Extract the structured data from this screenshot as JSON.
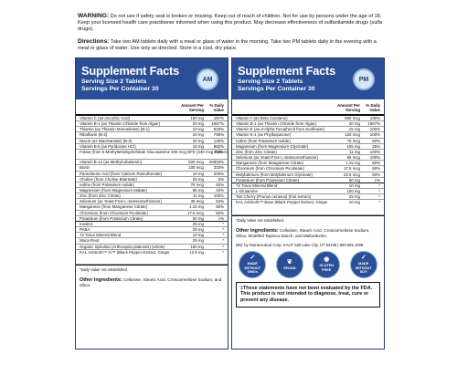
{
  "warning": {
    "label": "WARNING:",
    "text": "Do not use if safety seal is broken or missing. Keep out of reach of children. Not for use by persons under the age of 18. Keep your licensed health care practitioner informed when using this product. May decrease effectiveness of sulfanilamide drugs (sulfa drugs)."
  },
  "directions": {
    "label": "Directions:",
    "text": "Take two AM tablets daily with a meal or glass of water in the morning. Take two PM tablets daily in the evening with a meal or glass of water. Use only as directed. Store in a cool, dry place."
  },
  "am": {
    "title": "Supplement Facts",
    "serving": "Serving Size 2 Tablets",
    "per_container": "Servings Per Container 30",
    "badge": "AM",
    "col_amount": "Amount Per Serving",
    "col_dv": "% Daily Value",
    "rows": [
      {
        "n": "Vitamin C (as Ascorbic Acid)",
        "a": "150 mg",
        "d": "167%"
      },
      {
        "n": "Vitamin B-1 (as Thiamin Chloride from Algae)",
        "a": "20 mg",
        "d": "1667%"
      },
      {
        "n": "Thiamin (as Thiamin Mononitrate) (B-1)",
        "a": "10 mg",
        "d": "833%"
      },
      {
        "n": "Riboflavin (B-2)",
        "a": "10 mg",
        "d": "769%"
      },
      {
        "n": "Niacin (as Niacinamide) (B-3)",
        "a": "20 mg",
        "d": "125%"
      },
      {
        "n": "Vitamin B-6 (as Pyridoxine HCl)",
        "a": "15 mg",
        "d": "882%"
      },
      {
        "n": "Folate (from 5-Methyltetrahydrofolate Glucosamine Salt)",
        "a": "400 mcg DFE (240 mcg Folic Acid)",
        "d": "100%",
        "cls": "tall"
      },
      {
        "n": "Vitamin B-12 (as Methylcobalamin)",
        "a": "500 mcg",
        "d": "20833%"
      },
      {
        "n": "Biotin",
        "a": "100 mcg",
        "d": "333%"
      },
      {
        "n": "Pantothenic Acid (from Calcium Pantothenate)",
        "a": "10 mg",
        "d": "200%"
      },
      {
        "n": "Choline (from Choline Bitartrate)",
        "a": "25 mg",
        "d": "5%"
      },
      {
        "n": "Iodine (from Potassium Iodide)",
        "a": "75 mcg",
        "d": "50%"
      },
      {
        "n": "Magnesium (from Magnesium Malate)",
        "a": "85 mg",
        "d": "20%"
      },
      {
        "n": "Zinc (from Zinc Citrate)",
        "a": "11 mg",
        "d": "100%"
      },
      {
        "n": "Selenium (as Yeast-Free L-Selenomethionine)",
        "a": "35 mcg",
        "d": "64%"
      },
      {
        "n": "Manganese (from Manganese Citrate)",
        "a": "1.15 mg",
        "d": "50%"
      },
      {
        "n": "Chromium (from Chromium Picolinate)",
        "a": "17.5 mcg",
        "d": "50%"
      },
      {
        "n": "Potassium (from Potassium Citrate)",
        "a": "50 mg",
        "d": "1%",
        "cls": "thick"
      },
      {
        "n": "Inositol",
        "a": "25 mg",
        "d": "*"
      },
      {
        "n": "PABA",
        "a": "25 mg",
        "d": "*"
      },
      {
        "n": "72 Trace Mineral Blend",
        "a": "10 mg",
        "d": "*"
      },
      {
        "n": "Maca Root",
        "a": "25 mg",
        "d": "*"
      },
      {
        "n": "Organic Spirulina (Arthrospira platensis) (whole)",
        "a": "150 mg",
        "d": "*"
      },
      {
        "n": "KAL ActiSorb™ Ai™ (Black Pepper Extract, Ginger Root Extract, Rosemary Leaf Extract, Turmeric Root Extract, Cayenne Pepper)",
        "a": "12.5 mg",
        "d": "*",
        "cls": "tall3"
      }
    ],
    "footnote": "*Daily Value not established.",
    "other_label": "Other Ingredients:",
    "other_text": "Cellulose, Stearic Acid, Croscarmellose Sodium, and Silica."
  },
  "pm": {
    "title": "Supplement Facts",
    "serving": "Serving Size 2 Tablets",
    "per_container": "Servings Per Container 30",
    "badge": "PM",
    "col_amount": "Amount Per Serving",
    "col_dv": "% Daily Value",
    "rows": [
      {
        "n": "Vitamin A (as Beta Carotene)",
        "a": "900 mcg",
        "d": "100%"
      },
      {
        "n": "Vitamin B-1 (as Thiamin Chloride from Algae)",
        "a": "20 mg",
        "d": "1667%"
      },
      {
        "n": "Vitamin E (as d-Alpha Tocopherol from Sunflower)",
        "a": "15 mg",
        "d": "100%"
      },
      {
        "n": "Vitamin K-1 (as Phylloquinone)",
        "a": "120 mcg",
        "d": "100%"
      },
      {
        "n": "Iodine (from Potassium Iodide)",
        "a": "75 mcg",
        "d": "50%"
      },
      {
        "n": "Magnesium (from Magnesium Glycinate)",
        "a": "105 mg",
        "d": "25%"
      },
      {
        "n": "Zinc (from Zinc Citrate)",
        "a": "11 mg",
        "d": "100%"
      },
      {
        "n": "Selenium (as Yeast-Free L-Selenomethionine)",
        "a": "55 mcg",
        "d": "100%"
      },
      {
        "n": "Manganese (from Manganese Citrate)",
        "a": "1.15 mg",
        "d": "50%"
      },
      {
        "n": "Chromium (from Chromium Picolinate)",
        "a": "17.5 mcg",
        "d": "50%"
      },
      {
        "n": "Molybdenum (from Molybdenum Glycinate)",
        "a": "22.5 mcg",
        "d": "50%"
      },
      {
        "n": "Potassium (from Potassium Citrate)",
        "a": "50 mg",
        "d": "1%",
        "cls": "thick"
      },
      {
        "n": "72 Trace Mineral Blend",
        "a": "10 mg",
        "d": "*"
      },
      {
        "n": "L-Glutamine",
        "a": "100 mg",
        "d": "*"
      },
      {
        "n": "Tart Cherry (Prunus cerasus) (fruit extract)",
        "a": "25 mg",
        "d": "*"
      },
      {
        "n": "KAL ActiSorb™ Base (Black Pepper Extract, Ginger Root Extract, Rosemary Leaf Extract, Turmeric Root Extract, Cayenne Pepper)",
        "a": "10 mg",
        "d": "*",
        "cls": "tall3"
      }
    ],
    "footnote": "*Daily Value not established.",
    "other_label": "Other Ingredients:",
    "other_text": "Cellulose, Stearic Acid, Croscarmellose Sodium, Silica, Modified Tapioca Starch, and Maltodextrin.",
    "mfr": "Mfd. by Nutraceutical Corp. KAL® Salt Lake City, UT 84109 | 800.585.1008",
    "icons": [
      {
        "l1": "MADE WITHOUT",
        "l2": "GMOs",
        "sym": "✓"
      },
      {
        "l1": "VEGAN",
        "l2": "",
        "sym": "❦"
      },
      {
        "l1": "GLUTEN",
        "l2": "FREE",
        "sym": "◉"
      },
      {
        "l1": "MADE WITHOUT",
        "l2": "SOY",
        "sym": "✓"
      }
    ],
    "fda": "‡These statements have not been evaluated by the FDA. This product is not intended to diagnose, treat, cure or prevent any disease."
  }
}
